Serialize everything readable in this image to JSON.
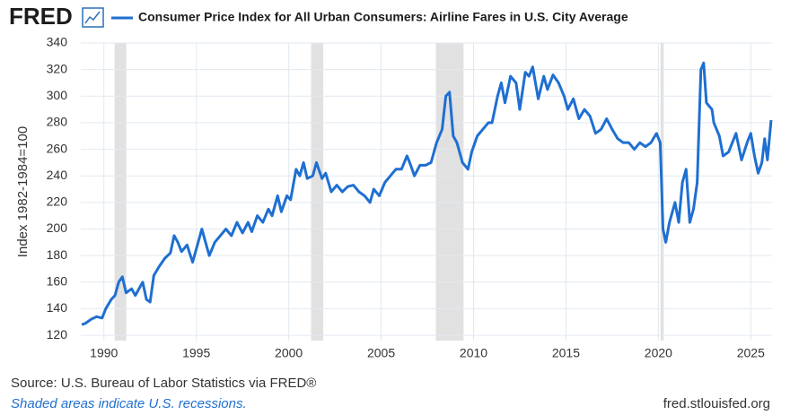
{
  "logo": "FRED",
  "chart_data": {
    "type": "line",
    "title": "Consumer Price Index for All Urban Consumers: Airline Fares in U.S. City Average",
    "y_label": "Index 1982-1984=100",
    "xlim": [
      1988.75,
      2026.15
    ],
    "ylim": [
      116,
      340
    ],
    "xticks": [
      1990,
      1995,
      2000,
      2005,
      2010,
      2015,
      2020,
      2025
    ],
    "yticks": [
      120,
      140,
      160,
      180,
      200,
      220,
      240,
      260,
      280,
      300,
      320,
      340
    ],
    "grid": true,
    "recession_color": "#e1e1e1",
    "recessions": [
      [
        1990.58,
        1991.21
      ],
      [
        2001.21,
        2001.87
      ],
      [
        2007.96,
        2009.46
      ],
      [
        2020.12,
        2020.29
      ]
    ],
    "x": [
      1988.8,
      1989.0,
      1989.3,
      1989.6,
      1989.9,
      1990.1,
      1990.4,
      1990.6,
      1990.8,
      1991.0,
      1991.2,
      1991.5,
      1991.7,
      1991.9,
      1992.1,
      1992.3,
      1992.5,
      1992.7,
      1993.0,
      1993.3,
      1993.6,
      1993.8,
      1994.0,
      1994.2,
      1994.5,
      1994.8,
      1995.0,
      1995.3,
      1995.5,
      1995.7,
      1996.0,
      1996.3,
      1996.6,
      1996.9,
      1997.2,
      1997.5,
      1997.8,
      1998.0,
      1998.3,
      1998.6,
      1998.9,
      1999.1,
      1999.4,
      1999.6,
      1999.9,
      2000.1,
      2000.4,
      2000.6,
      2000.8,
      2001.0,
      2001.3,
      2001.5,
      2001.8,
      2002.0,
      2002.3,
      2002.6,
      2002.9,
      2003.2,
      2003.5,
      2003.8,
      2004.1,
      2004.4,
      2004.6,
      2004.9,
      2005.2,
      2005.5,
      2005.8,
      2006.1,
      2006.4,
      2006.6,
      2006.8,
      2007.1,
      2007.4,
      2007.7,
      2008.0,
      2008.3,
      2008.5,
      2008.7,
      2008.9,
      2009.1,
      2009.4,
      2009.7,
      2009.9,
      2010.2,
      2010.5,
      2010.8,
      2011.0,
      2011.3,
      2011.5,
      2011.7,
      2012.0,
      2012.3,
      2012.5,
      2012.8,
      2013.0,
      2013.2,
      2013.5,
      2013.8,
      2014.0,
      2014.3,
      2014.6,
      2014.9,
      2015.1,
      2015.4,
      2015.7,
      2016.0,
      2016.3,
      2016.6,
      2016.9,
      2017.2,
      2017.5,
      2017.8,
      2018.1,
      2018.4,
      2018.7,
      2019.0,
      2019.3,
      2019.6,
      2019.9,
      2020.1,
      2020.25,
      2020.4,
      2020.6,
      2020.9,
      2021.1,
      2021.3,
      2021.5,
      2021.7,
      2021.9,
      2022.1,
      2022.3,
      2022.45,
      2022.6,
      2022.9,
      2023.0,
      2023.3,
      2023.5,
      2023.8,
      2024.0,
      2024.2,
      2024.5,
      2024.8,
      2025.0,
      2025.2,
      2025.4,
      2025.6,
      2025.75,
      2025.9,
      2026.1
    ],
    "series": [
      {
        "name": "Consumer Price Index for All Urban Consumers: Airline Fares in U.S. City Average",
        "color": "#1f6fd1",
        "values": [
          128,
          129,
          132,
          134,
          133,
          140,
          147,
          150,
          160,
          164,
          152,
          155,
          150,
          155,
          160,
          147,
          145,
          165,
          172,
          178,
          182,
          195,
          190,
          183,
          188,
          175,
          185,
          200,
          190,
          180,
          190,
          195,
          200,
          195,
          205,
          197,
          205,
          198,
          210,
          205,
          215,
          210,
          225,
          213,
          225,
          222,
          245,
          240,
          250,
          238,
          240,
          250,
          238,
          242,
          228,
          233,
          228,
          232,
          233,
          228,
          225,
          220,
          230,
          225,
          235,
          240,
          245,
          245,
          255,
          248,
          240,
          248,
          248,
          250,
          265,
          275,
          300,
          303,
          270,
          265,
          250,
          245,
          258,
          270,
          275,
          280,
          280,
          300,
          310,
          295,
          315,
          310,
          290,
          318,
          315,
          322,
          298,
          315,
          305,
          316,
          310,
          300,
          290,
          298,
          283,
          290,
          285,
          272,
          275,
          283,
          275,
          268,
          265,
          265,
          260,
          265,
          262,
          265,
          272,
          265,
          200,
          190,
          205,
          220,
          205,
          235,
          245,
          205,
          215,
          235,
          320,
          325,
          295,
          290,
          280,
          270,
          255,
          258,
          265,
          272,
          252,
          265,
          272,
          255,
          242,
          250,
          268,
          252,
          282
        ]
      }
    ]
  },
  "footer": {
    "source": "Source: U.S. Bureau of Labor Statistics via FRED®",
    "note": "Shaded areas indicate U.S. recessions.",
    "url": "fred.stlouisfed.org"
  }
}
